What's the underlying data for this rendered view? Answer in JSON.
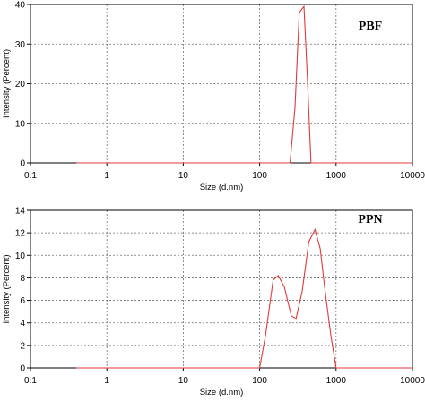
{
  "chart_data": [
    {
      "type": "line",
      "title": "PBF",
      "xlabel": "Size (d.nm)",
      "ylabel": "Intensity (Percent)",
      "xscale": "log",
      "xlim": [
        0.1,
        10000
      ],
      "ylim": [
        0,
        40
      ],
      "x_ticks": [
        "0.1",
        "1",
        "10",
        "100",
        "1000",
        "10000"
      ],
      "y_ticks": [
        "0",
        "10",
        "20",
        "30",
        "40"
      ],
      "grid": true,
      "series": [
        {
          "color": "#e03a3a",
          "x": [
            0.4,
            250,
            290,
            330,
            380,
            420,
            470,
            560,
            10000
          ],
          "y": [
            0,
            0,
            14,
            38,
            39.5,
            22,
            0,
            0,
            0
          ]
        }
      ]
    },
    {
      "type": "line",
      "title": "PPN",
      "xlabel": "Size (d.nm)",
      "ylabel": "Intensity (Percent)",
      "xscale": "log",
      "xlim": [
        0.1,
        10000
      ],
      "ylim": [
        0,
        14
      ],
      "x_ticks": [
        "0.1",
        "1",
        "10",
        "100",
        "1000",
        "10000"
      ],
      "y_ticks": [
        "0",
        "2",
        "4",
        "6",
        "8",
        "10",
        "12",
        "14"
      ],
      "grid": true,
      "series": [
        {
          "color": "#e03a3a",
          "x": [
            0.4,
            100,
            120,
            150,
            175,
            210,
            260,
            300,
            360,
            440,
            530,
            620,
            720,
            850,
            1000,
            10000
          ],
          "y": [
            0,
            0,
            3,
            7.8,
            8.2,
            7.2,
            4.6,
            4.4,
            6.8,
            11.2,
            12.3,
            10.6,
            6.8,
            3,
            0,
            0
          ]
        }
      ]
    }
  ]
}
